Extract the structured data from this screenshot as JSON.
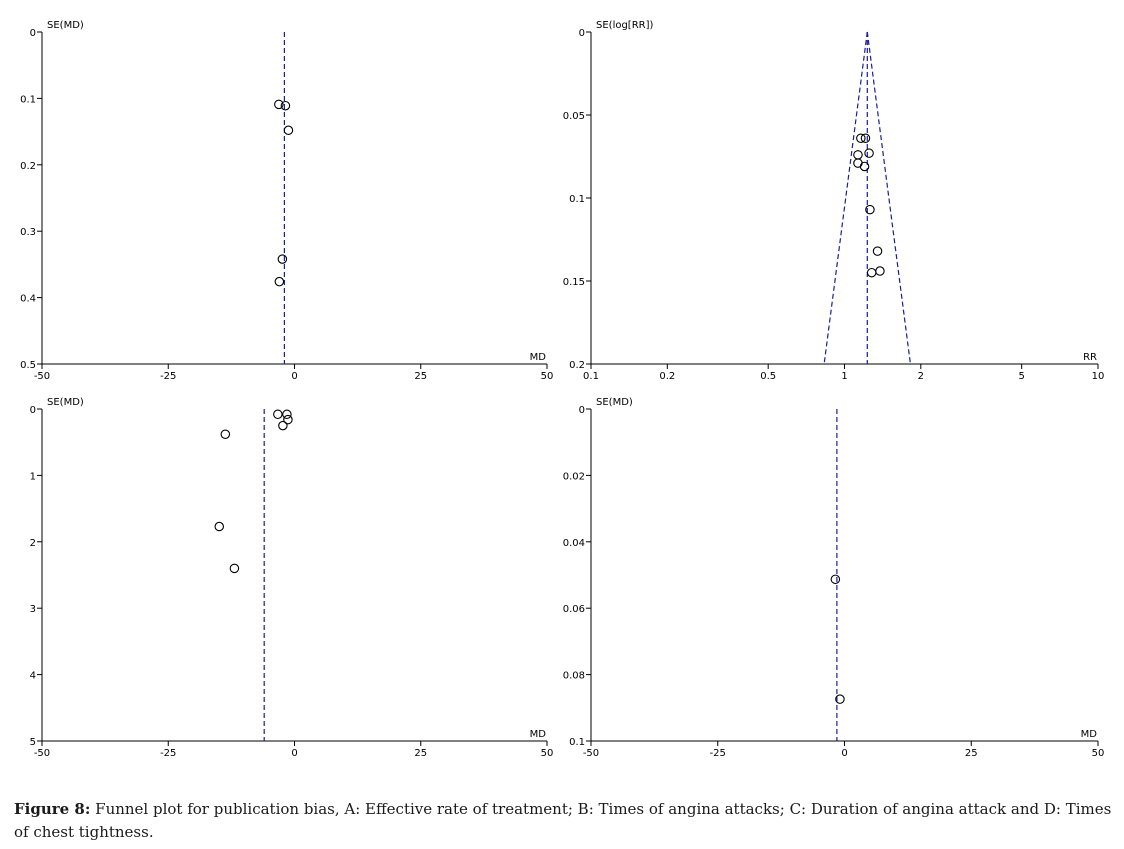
{
  "chart_data": [
    {
      "type": "scatter",
      "panel": "A",
      "ylabel": "SE(MD)",
      "xlabel": "MD",
      "xscale": "linear",
      "xlim": [
        -50,
        50
      ],
      "ylim": [
        0,
        0.5
      ],
      "y_inverted": true,
      "xticks": [
        -50,
        -25,
        0,
        25,
        50
      ],
      "xtick_labels": [
        "-50",
        "-25",
        "0",
        "25",
        "50"
      ],
      "yticks": [
        0,
        0.1,
        0.2,
        0.3,
        0.4,
        0.5
      ],
      "ytick_labels": [
        "0",
        "0.1",
        "0.2",
        "0.3",
        "0.4",
        "0.5"
      ],
      "center_line": -2,
      "funnel": false,
      "points": [
        {
          "x": -3.1,
          "y": 0.109
        },
        {
          "x": -1.8,
          "y": 0.111
        },
        {
          "x": -1.2,
          "y": 0.148
        },
        {
          "x": -2.4,
          "y": 0.342
        },
        {
          "x": -3.0,
          "y": 0.376
        }
      ]
    },
    {
      "type": "scatter",
      "panel": "B",
      "ylabel": "SE(log[RR])",
      "xlabel": "RR",
      "xscale": "log",
      "xlim": [
        0.1,
        10
      ],
      "ylim": [
        0,
        0.2
      ],
      "y_inverted": true,
      "xticks": [
        0.1,
        0.2,
        0.5,
        1,
        2,
        5,
        10
      ],
      "xtick_labels": [
        "0.1",
        "0.2",
        "0.5",
        "1",
        "2",
        "5",
        "10"
      ],
      "yticks": [
        0,
        0.05,
        0.1,
        0.15,
        0.2
      ],
      "ytick_labels": [
        "0",
        "0.05",
        "0.1",
        "0.15",
        "0.2"
      ],
      "center_line": 1.23,
      "funnel": true,
      "points": [
        {
          "x": 1.16,
          "y": 0.064
        },
        {
          "x": 1.21,
          "y": 0.064
        },
        {
          "x": 1.13,
          "y": 0.074
        },
        {
          "x": 1.25,
          "y": 0.073
        },
        {
          "x": 1.13,
          "y": 0.079
        },
        {
          "x": 1.2,
          "y": 0.081
        },
        {
          "x": 1.26,
          "y": 0.107
        },
        {
          "x": 1.35,
          "y": 0.132
        },
        {
          "x": 1.28,
          "y": 0.145
        },
        {
          "x": 1.38,
          "y": 0.144
        }
      ]
    },
    {
      "type": "scatter",
      "panel": "C",
      "ylabel": "SE(MD)",
      "xlabel": "MD",
      "xscale": "linear",
      "xlim": [
        -50,
        50
      ],
      "ylim": [
        0,
        5
      ],
      "y_inverted": true,
      "xticks": [
        -50,
        -25,
        0,
        25,
        50
      ],
      "xtick_labels": [
        "-50",
        "-25",
        "0",
        "25",
        "50"
      ],
      "yticks": [
        0,
        1,
        2,
        3,
        4,
        5
      ],
      "ytick_labels": [
        "0",
        "1",
        "2",
        "3",
        "4",
        "5"
      ],
      "center_line": -6,
      "funnel": false,
      "points": [
        {
          "x": -3.3,
          "y": 0.08
        },
        {
          "x": -1.5,
          "y": 0.08
        },
        {
          "x": -1.3,
          "y": 0.16
        },
        {
          "x": -2.3,
          "y": 0.25
        },
        {
          "x": -13.7,
          "y": 0.38
        },
        {
          "x": -14.9,
          "y": 1.77
        },
        {
          "x": -11.9,
          "y": 2.4
        }
      ]
    },
    {
      "type": "scatter",
      "panel": "D",
      "ylabel": "SE(MD)",
      "xlabel": "MD",
      "xscale": "linear",
      "xlim": [
        -50,
        50
      ],
      "ylim": [
        0,
        0.1
      ],
      "y_inverted": true,
      "xticks": [
        -50,
        -25,
        0,
        25,
        50
      ],
      "xtick_labels": [
        "-50",
        "-25",
        "0",
        "25",
        "50"
      ],
      "yticks": [
        0,
        0.02,
        0.04,
        0.06,
        0.08,
        0.1
      ],
      "ytick_labels": [
        "0",
        "0.02",
        "0.04",
        "0.06",
        "0.08",
        "0.1"
      ],
      "center_line": -1.5,
      "funnel": false,
      "points": [
        {
          "x": -1.8,
          "y": 0.0513
        },
        {
          "x": -0.9,
          "y": 0.0874
        }
      ]
    }
  ],
  "caption": {
    "label": "Figure 8:",
    "text": " Funnel plot for publication bias, A: Effective rate of treatment; B: Times of angina attacks; C: Duration of angina attack and D: Times of chest tightness."
  },
  "colors": {
    "axis": "#000000",
    "reference_line": "#1a1aa6",
    "marker": "#000000"
  }
}
